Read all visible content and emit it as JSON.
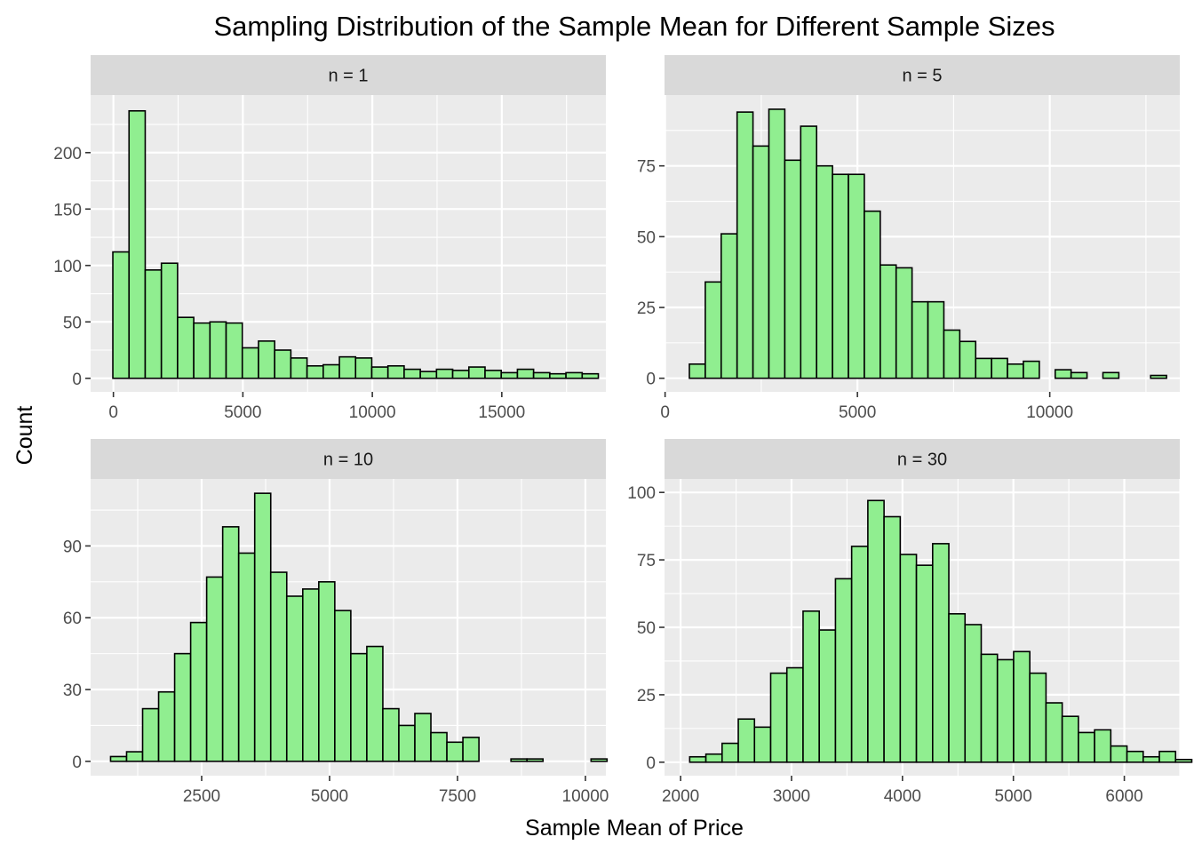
{
  "chart_data": {
    "type": "bar",
    "title": "Sampling Distribution of the Sample Mean for Different Sample Sizes",
    "xlabel": "Sample Mean of Price",
    "ylabel": "Count",
    "fill_color": "#90ee90",
    "outline_color": "#000000",
    "panels": [
      {
        "label": "n = 1",
        "bin_width": 625,
        "bin_start": -21.5,
        "counts": [
          112,
          237,
          96,
          102,
          54,
          49,
          50,
          49,
          27,
          33,
          25,
          18,
          11,
          12,
          19,
          18,
          10,
          11,
          8,
          6,
          8,
          7,
          10,
          7,
          5,
          8,
          5,
          4,
          5,
          4
        ],
        "xlim": [
          -880,
          19020
        ],
        "ylim": [
          -12,
          251
        ],
        "xticks": [
          0,
          5000,
          10000,
          15000
        ],
        "xtick_labels": [
          "0",
          "5000",
          "10000",
          "15000"
        ],
        "yticks": [
          0,
          50,
          100,
          150,
          200
        ],
        "ytick_labels": [
          "0",
          "50",
          "100",
          "150",
          "200"
        ]
      },
      {
        "label": "n = 5",
        "bin_width": 413.5,
        "bin_start": 631,
        "counts": [
          5,
          34,
          51,
          94,
          82,
          95,
          77,
          89,
          75,
          72,
          72,
          59,
          40,
          39,
          27,
          27,
          17,
          13,
          7,
          7,
          5,
          6,
          0,
          3,
          2,
          0,
          2,
          0,
          0,
          1
        ],
        "xlim": [
          -15,
          13380
        ],
        "ylim": [
          -4.8,
          100
        ],
        "xticks": [
          0,
          5000,
          10000
        ],
        "xtick_labels": [
          "0",
          "5000",
          "10000"
        ],
        "yticks": [
          0,
          25,
          50,
          75
        ],
        "ytick_labels": [
          "0",
          "25",
          "50",
          "75"
        ]
      },
      {
        "label": "n = 10",
        "bin_width": 313,
        "bin_start": 720,
        "counts": [
          2,
          4,
          22,
          29,
          45,
          58,
          77,
          98,
          87,
          112,
          79,
          69,
          72,
          75,
          63,
          45,
          48,
          22,
          15,
          20,
          12,
          8,
          10,
          0,
          0,
          1,
          1,
          0,
          0,
          0,
          1
        ],
        "xlim": [
          330,
          10400
        ],
        "ylim": [
          -6,
          118
        ],
        "xticks": [
          2500,
          5000,
          7500,
          10000
        ],
        "xtick_labels": [
          "2500",
          "5000",
          "7500",
          "10000"
        ],
        "yticks": [
          0,
          30,
          60,
          90
        ],
        "ytick_labels": [
          "0",
          "30",
          "60",
          "90"
        ]
      },
      {
        "label": "n = 30",
        "bin_width": 146,
        "bin_start": 2082,
        "counts": [
          2,
          3,
          7,
          16,
          13,
          33,
          35,
          56,
          49,
          68,
          80,
          97,
          91,
          77,
          73,
          81,
          55,
          51,
          40,
          38,
          41,
          33,
          22,
          17,
          11,
          12,
          6,
          4,
          2,
          4,
          1
        ],
        "xlim": [
          1855,
          6500
        ],
        "ylim": [
          -5,
          105
        ],
        "xticks": [
          2000,
          3000,
          4000,
          5000,
          6000
        ],
        "xtick_labels": [
          "2000",
          "3000",
          "4000",
          "5000",
          "6000"
        ],
        "yticks": [
          0,
          25,
          50,
          75,
          100
        ],
        "ytick_labels": [
          "0",
          "25",
          "50",
          "75",
          "100"
        ]
      }
    ]
  }
}
